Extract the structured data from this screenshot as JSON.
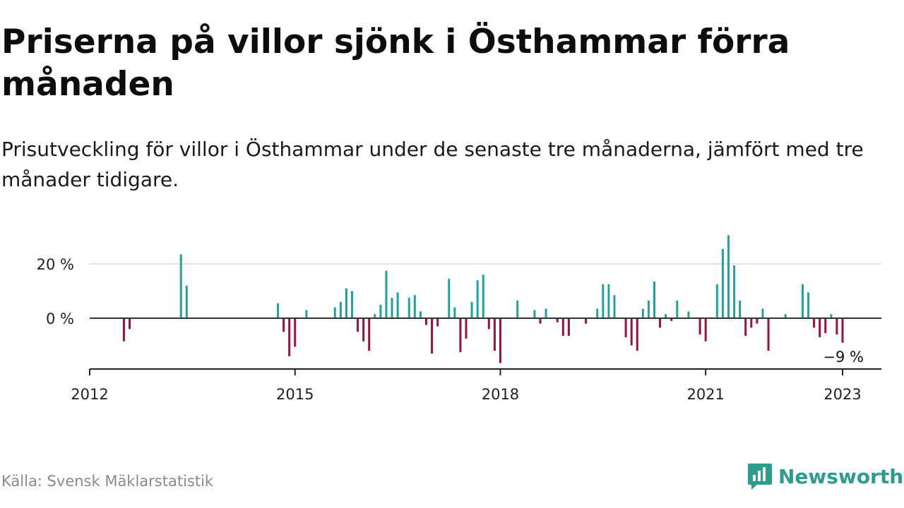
{
  "title": "Priserna på villor sjönk i Östhammar förra månaden",
  "subtitle": "Prisutveckling för villor i Östhammar under de senaste tre månaderna, jämfört med tre månader tidigare.",
  "source": "Källa: Svensk Mäklarstatistik",
  "brand": {
    "name": "Newsworthy",
    "icon": "newsworthy-logo-icon"
  },
  "colors": {
    "positive": "#20a39e",
    "negative": "#9a1045",
    "axis": "#333333",
    "grid": "#d9d9d9"
  },
  "chart_data": {
    "type": "bar",
    "title": "",
    "xlabel": "",
    "ylabel": "",
    "ylim": [
      -20,
      32
    ],
    "x_range": [
      "2012-01",
      "2023-07"
    ],
    "y_ticks": [
      {
        "value": 0,
        "label": "0 %"
      },
      {
        "value": 20,
        "label": "20 %"
      }
    ],
    "x_ticks": [
      {
        "date": "2012-01",
        "label": "2012"
      },
      {
        "date": "2015-01",
        "label": "2015"
      },
      {
        "date": "2018-01",
        "label": "2018"
      },
      {
        "date": "2021-01",
        "label": "2021"
      },
      {
        "date": "2023-01",
        "label": "2023"
      }
    ],
    "grid": "horizontal",
    "last_value_label": "−9 %",
    "series": [
      {
        "points": [
          [
            "2012-07",
            -8.5
          ],
          [
            "2012-08",
            -4
          ],
          [
            "2013-05",
            23.5
          ],
          [
            "2013-06",
            12
          ],
          [
            "2014-10",
            5.5
          ],
          [
            "2014-11",
            -5
          ],
          [
            "2014-12",
            -14
          ],
          [
            "2015-01",
            -10.5
          ],
          [
            "2015-03",
            3
          ],
          [
            "2015-08",
            4
          ],
          [
            "2015-09",
            6
          ],
          [
            "2015-10",
            11
          ],
          [
            "2015-11",
            10
          ],
          [
            "2015-12",
            -5
          ],
          [
            "2016-01",
            -8.5
          ],
          [
            "2016-02",
            -12
          ],
          [
            "2016-03",
            1.5
          ],
          [
            "2016-04",
            5
          ],
          [
            "2016-05",
            17.5
          ],
          [
            "2016-06",
            7.5
          ],
          [
            "2016-07",
            9.5
          ],
          [
            "2016-09",
            7.5
          ],
          [
            "2016-10",
            8.5
          ],
          [
            "2016-11",
            2.5
          ],
          [
            "2016-12",
            -2.5
          ],
          [
            "2017-01",
            -13
          ],
          [
            "2017-02",
            -3
          ],
          [
            "2017-04",
            14.5
          ],
          [
            "2017-05",
            4
          ],
          [
            "2017-06",
            -12.5
          ],
          [
            "2017-07",
            -7.5
          ],
          [
            "2017-08",
            6
          ],
          [
            "2017-09",
            14
          ],
          [
            "2017-10",
            16
          ],
          [
            "2017-11",
            -4
          ],
          [
            "2017-12",
            -12
          ],
          [
            "2018-01",
            -16.5
          ],
          [
            "2018-04",
            6.5
          ],
          [
            "2018-07",
            3
          ],
          [
            "2018-08",
            -2
          ],
          [
            "2018-09",
            3.5
          ],
          [
            "2018-11",
            -1.5
          ],
          [
            "2018-12",
            -6.5
          ],
          [
            "2019-01",
            -6.5
          ],
          [
            "2019-04",
            -2
          ],
          [
            "2019-06",
            3.5
          ],
          [
            "2019-07",
            12.5
          ],
          [
            "2019-08",
            12.5
          ],
          [
            "2019-09",
            8.5
          ],
          [
            "2019-11",
            -7
          ],
          [
            "2019-12",
            -10
          ],
          [
            "2020-01",
            -12
          ],
          [
            "2020-02",
            3.5
          ],
          [
            "2020-03",
            6.5
          ],
          [
            "2020-04",
            13.5
          ],
          [
            "2020-05",
            -3.5
          ],
          [
            "2020-06",
            1.5
          ],
          [
            "2020-07",
            -1
          ],
          [
            "2020-08",
            6.5
          ],
          [
            "2020-10",
            2.5
          ],
          [
            "2020-12",
            -6
          ],
          [
            "2021-01",
            -8.5
          ],
          [
            "2021-03",
            12.5
          ],
          [
            "2021-04",
            25.5
          ],
          [
            "2021-05",
            30.5
          ],
          [
            "2021-06",
            19.5
          ],
          [
            "2021-07",
            6.5
          ],
          [
            "2021-08",
            -6.5
          ],
          [
            "2021-09",
            -3.5
          ],
          [
            "2021-10",
            -2
          ],
          [
            "2021-11",
            3.5
          ],
          [
            "2021-12",
            -12
          ],
          [
            "2022-03",
            1.5
          ],
          [
            "2022-06",
            12.5
          ],
          [
            "2022-07",
            9.5
          ],
          [
            "2022-08",
            -3.5
          ],
          [
            "2022-09",
            -7
          ],
          [
            "2022-10",
            -5.5
          ],
          [
            "2022-11",
            1.5
          ],
          [
            "2022-12",
            -6
          ],
          [
            "2023-01",
            -9
          ]
        ]
      }
    ]
  }
}
